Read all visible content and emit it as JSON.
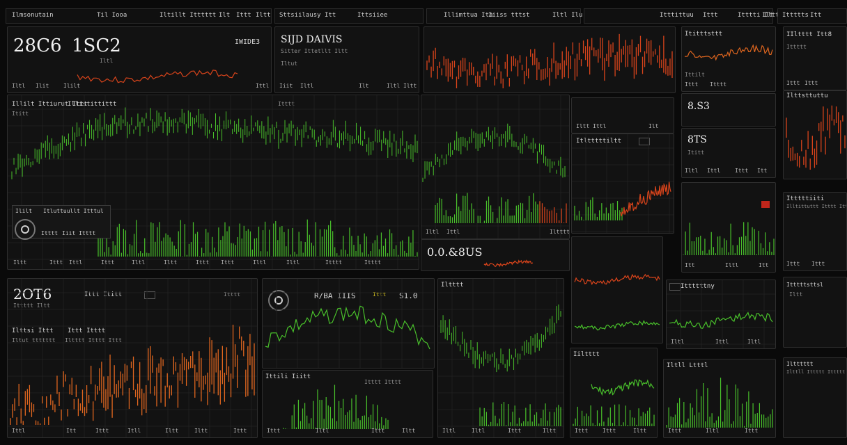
{
  "colors": {
    "green": "#49c12b",
    "red": "#d9441b",
    "orange": "#e0661f",
    "yellow": "#d2c01e",
    "bg": "#0a0a0a",
    "panel": "#121212"
  },
  "topbar": {
    "items": [
      "Ilmsonutain",
      "Til Iooa",
      "Iltillt Itttttt",
      "Ilt",
      "Ittt",
      "Iltt",
      "Sttsiilausy Itt",
      "Ittsiiee",
      "Illimttua Ita",
      "Iiiss tttst",
      "Iltl Ilu",
      "Itttittuu",
      "Ittt",
      "Itttti Iltt",
      "Ilt",
      "Ittttts",
      "Itt",
      "Itttt",
      "Itt"
    ]
  },
  "panels": {
    "p1": {
      "big_left": "28C6",
      "big_right": "1SC2",
      "label": "IWIDE3",
      "sub": "Iltl",
      "foot": [
        "Iltl",
        "Ilit",
        "Ililt",
        "Ittl"
      ]
    },
    "p2": {
      "title": "SIJD DAIVIS",
      "sub1": "Sitter Ittetllt Iltt",
      "sub2": "Iltut",
      "foot": [
        "Iiit",
        "Iltl",
        "Ilt",
        "Iltl",
        "Iltt"
      ]
    },
    "p3": {
      "foot": [
        "Iiit",
        "Ilt",
        "Iltl",
        "Itt"
      ]
    },
    "main": {
      "title": "Illilt Ittiurut Ittt",
      "title2": "Illistittittt",
      "sub": "Ititt",
      "legend": [
        "Ililt",
        "Itluttuullt Itttul",
        "Itttt",
        "Iiit Itttt"
      ],
      "foot": [
        "Iltt",
        "Ittt",
        "Ittl",
        "Ittt",
        "Iltl",
        "Iltt",
        "Ittt",
        "Ittt",
        "Iltl",
        "Iltl",
        "Itttt",
        "Itttt"
      ]
    },
    "mid": {
      "badge": "Itttt",
      "big": "0.0.&8US",
      "foot": [
        "Iltl",
        "Ittl",
        "Iltttt"
      ]
    },
    "midright": {
      "title": "Itltttttiltt",
      "foot": [
        "Iltt",
        "Ittl",
        "Ilt"
      ]
    },
    "right1": {
      "title": "Ititttsttt",
      "sub": "Ittilt",
      "foot": [
        "Ittt",
        "Itttt"
      ]
    },
    "right2": {
      "big": "8.S3",
      "sub": "Ittt"
    },
    "right3": {
      "big": "8TS",
      "sub": "Ititt",
      "foot": [
        "Iltl",
        "Ittl",
        "Ittt",
        "Itt"
      ]
    },
    "right4": {
      "title": "Iltttt",
      "foot": [
        "Itt",
        "Iltl",
        "Itt"
      ]
    },
    "far1": {
      "title": "IIltttt Itt8",
      "sub": "Ittttt",
      "foot": [
        "Ittt",
        "Ittt"
      ]
    },
    "far2": {
      "title": "Ilttsttuttu",
      "foot": [
        "Ittt"
      ]
    },
    "far3": {
      "title": "Itttttiiti",
      "sub": "Illtittuttt Itttt Itt",
      "foot": [
        "Ittt",
        "Ittt"
      ]
    },
    "p4": {
      "big": "2OT6",
      "sub": "Ittttt Iltt",
      "label1": "Ilttsi Ittt",
      "label2": "Ittt Itttt",
      "label3": "Iltut ttttttt",
      "label4": "Iltttt Itttt Ittt",
      "top": "Ittt Ititt",
      "badge": "Itttt",
      "foot": [
        "Ittl",
        "Itt",
        "Ittt",
        "Itll",
        "Iltt",
        "Iltt",
        "Ittt"
      ]
    },
    "p5": {
      "title": "R/BA IIIS",
      "tag": "Ittt",
      "right": "S1.0",
      "foot": [
        "Ittt",
        "Iltt",
        "Ittl",
        "Itt"
      ]
    },
    "p6": {
      "title": "Ittili Iiitt",
      "sub": "Itttt Itttt",
      "foot": [
        "Ittt",
        "Iltl",
        "Ittt",
        "Iltt"
      ]
    },
    "p7": {
      "title": "Iltttt",
      "foot": [
        "Iltl",
        "Iltl",
        "Ittt",
        "Iltt"
      ]
    },
    "p8": {
      "title": "Iiltttt",
      "foot": [
        "Ittt",
        "Ittt",
        "Iltt"
      ]
    },
    "p9": {
      "title": "Ittttttny",
      "foot": [
        "Iltl",
        "Ittl",
        "Iltl"
      ]
    },
    "p10": {
      "title": "Iltll Ltttl",
      "foot": [
        "Ittt",
        "Iltl",
        "Ittt"
      ]
    },
    "p11": {
      "title": "Itttttsttsl",
      "foot": [
        "Ilttt",
        "Ittt",
        "Ittl",
        "Ittl"
      ]
    },
    "p12": {
      "title": "Ilttll Ittttt Ittttt",
      "sub": "Iltt",
      "foot": [
        "Ittt"
      ]
    },
    "p13": {
      "title": "Iltttttt",
      "foot": [
        "Iltl",
        "Ittt"
      ]
    }
  }
}
